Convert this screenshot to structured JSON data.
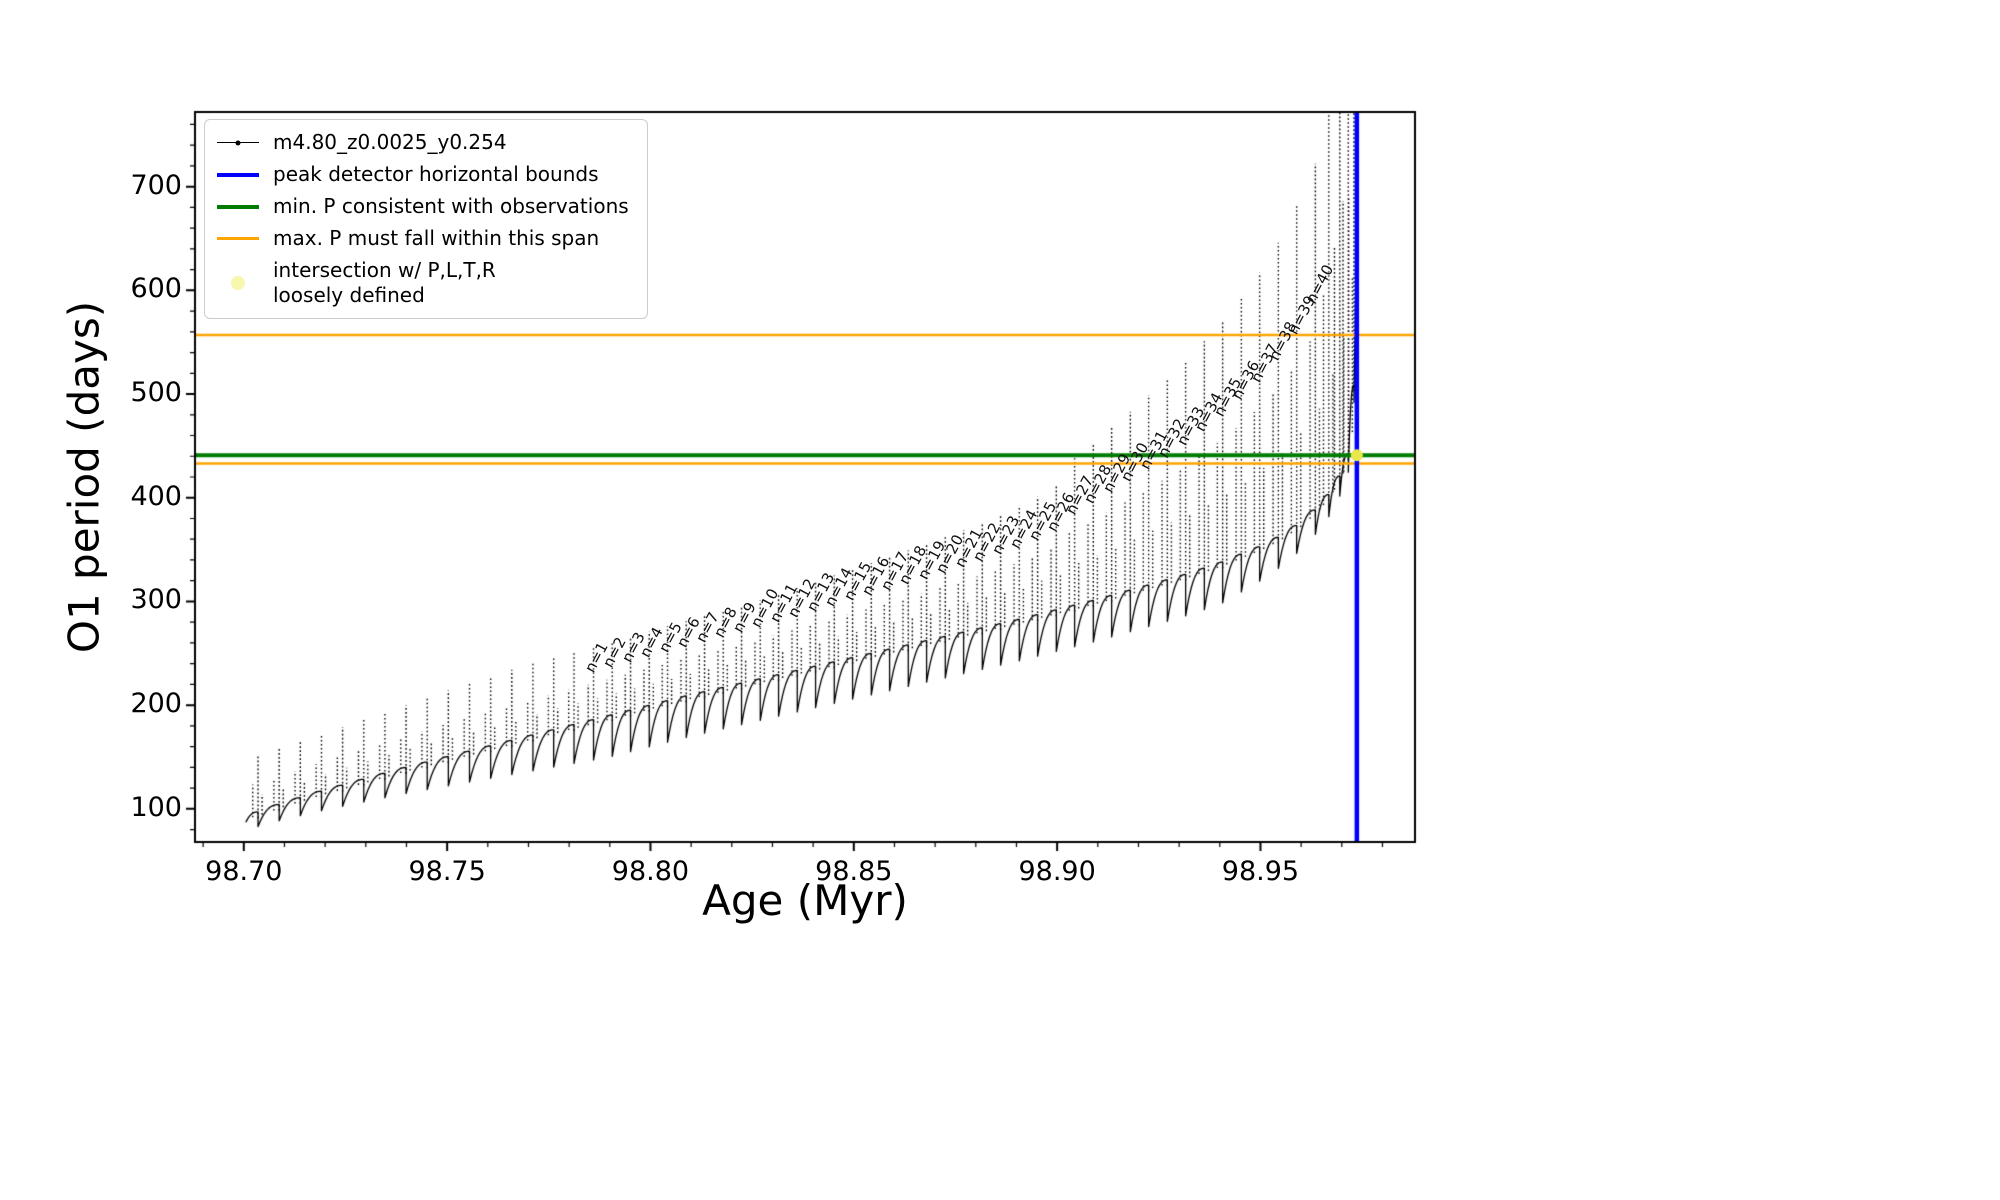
{
  "axes": {
    "xlabel": "Age (Myr)",
    "ylabel": "O1 period (days)",
    "xlim": [
      98.688,
      98.988
    ],
    "ylim": [
      68,
      772
    ],
    "xticks": [
      98.7,
      98.75,
      98.8,
      98.85,
      98.9,
      98.95
    ],
    "xtick_labels": [
      "98.70",
      "98.75",
      "98.80",
      "98.85",
      "98.90",
      "98.95"
    ],
    "yticks": [
      100,
      200,
      300,
      400,
      500,
      600,
      700
    ],
    "ytick_labels": [
      "100",
      "200",
      "300",
      "400",
      "500",
      "600",
      "700"
    ],
    "x_minor_step": 0.01,
    "y_minor_step": 20
  },
  "legend": {
    "entries": [
      {
        "label": "m4.80_z0.0025_y0.254",
        "type": "line-marker",
        "color": "#000000",
        "lw": 1.5
      },
      {
        "label": "peak detector horizontal bounds",
        "type": "line",
        "color": "#0000ff",
        "lw": 4
      },
      {
        "label": "min. P consistent with observations",
        "type": "line",
        "color": "#007d00",
        "lw": 4
      },
      {
        "label": "max. P must fall within this span",
        "type": "line",
        "color": "#ffa500",
        "lw": 2.5
      },
      {
        "label": "intersection w/ P,L,T,R\nloosely defined",
        "type": "marker",
        "color": "#f7f7ae",
        "lw": 0
      }
    ]
  },
  "chart_data": {
    "type": "line",
    "series_name": "m4.80_z0.0025_y0.254",
    "title": "",
    "xlabel": "Age (Myr)",
    "ylabel": "O1 period (days)",
    "xlim": [
      98.688,
      98.988
    ],
    "ylim": [
      68,
      772
    ],
    "grid": false,
    "legend_position": "upper left",
    "baseline_keypoints": [
      [
        98.7,
        94
      ],
      [
        98.7035,
        97
      ],
      [
        98.71,
        106
      ],
      [
        98.72,
        118
      ],
      [
        98.73,
        129
      ],
      [
        98.74,
        140
      ],
      [
        98.75,
        150
      ],
      [
        98.76,
        160
      ],
      [
        98.77,
        170
      ],
      [
        98.78,
        180
      ],
      [
        98.79,
        190
      ],
      [
        98.8,
        200
      ],
      [
        98.81,
        210
      ],
      [
        98.82,
        219
      ],
      [
        98.83,
        228
      ],
      [
        98.84,
        237
      ],
      [
        98.85,
        246
      ],
      [
        98.86,
        255
      ],
      [
        98.87,
        264
      ],
      [
        98.88,
        273
      ],
      [
        98.89,
        282
      ],
      [
        98.9,
        292
      ],
      [
        98.91,
        302
      ],
      [
        98.92,
        313
      ],
      [
        98.93,
        324
      ],
      [
        98.94,
        337
      ],
      [
        98.95,
        353
      ],
      [
        98.955,
        363
      ],
      [
        98.96,
        376
      ],
      [
        98.964,
        390
      ],
      [
        98.967,
        404
      ],
      [
        98.969,
        417
      ],
      [
        98.9705,
        429
      ],
      [
        98.9715,
        441
      ],
      [
        98.9722,
        452
      ],
      [
        98.9728,
        475
      ],
      [
        98.9733,
        560
      ],
      [
        98.9737,
        700
      ],
      [
        98.974,
        800
      ]
    ],
    "pulses": [
      {
        "age": 98.7035,
        "tip": 152
      },
      {
        "age": 98.7087,
        "tip": 158
      },
      {
        "age": 98.7139,
        "tip": 165
      },
      {
        "age": 98.7191,
        "tip": 172
      },
      {
        "age": 98.7243,
        "tip": 179
      },
      {
        "age": 98.7295,
        "tip": 186
      },
      {
        "age": 98.7347,
        "tip": 193
      },
      {
        "age": 98.7399,
        "tip": 200
      },
      {
        "age": 98.7451,
        "tip": 207
      },
      {
        "age": 98.7503,
        "tip": 214
      },
      {
        "age": 98.7555,
        "tip": 221
      },
      {
        "age": 98.7607,
        "tip": 228
      },
      {
        "age": 98.7659,
        "tip": 234
      },
      {
        "age": 98.7711,
        "tip": 240
      },
      {
        "age": 98.7762,
        "tip": 246
      },
      {
        "age": 98.7812,
        "tip": 251
      },
      {
        "age": 98.786,
        "tip": 256,
        "label": "n=1"
      },
      {
        "age": 98.7906,
        "tip": 261,
        "label": "n=2"
      },
      {
        "age": 98.7951,
        "tip": 266,
        "label": "n=3"
      },
      {
        "age": 98.7997,
        "tip": 271,
        "label": "n=4"
      },
      {
        "age": 98.8042,
        "tip": 276,
        "label": "n=5"
      },
      {
        "age": 98.8088,
        "tip": 281,
        "label": "n=6"
      },
      {
        "age": 98.8133,
        "tip": 286,
        "label": "n=7"
      },
      {
        "age": 98.8179,
        "tip": 291,
        "label": "n=8"
      },
      {
        "age": 98.8224,
        "tip": 296,
        "label": "n=9"
      },
      {
        "age": 98.827,
        "tip": 301,
        "label": "n=10"
      },
      {
        "age": 98.8315,
        "tip": 307,
        "label": "n=11"
      },
      {
        "age": 98.8361,
        "tip": 313,
        "label": "n=12"
      },
      {
        "age": 98.8406,
        "tip": 319,
        "label": "n=13"
      },
      {
        "age": 98.8452,
        "tip": 325,
        "label": "n=14"
      },
      {
        "age": 98.8497,
        "tip": 331,
        "label": "n=15"
      },
      {
        "age": 98.8543,
        "tip": 337,
        "label": "n=16"
      },
      {
        "age": 98.8588,
        "tip": 343,
        "label": "n=17"
      },
      {
        "age": 98.8634,
        "tip": 349,
        "label": "n=18"
      },
      {
        "age": 98.8679,
        "tip": 355,
        "label": "n=19"
      },
      {
        "age": 98.8725,
        "tip": 362,
        "label": "n=20"
      },
      {
        "age": 98.877,
        "tip": 369,
        "label": "n=21"
      },
      {
        "age": 98.8816,
        "tip": 376,
        "label": "n=22"
      },
      {
        "age": 98.8861,
        "tip": 384,
        "label": "n=23"
      },
      {
        "age": 98.8907,
        "tip": 392,
        "label": "n=24"
      },
      {
        "age": 98.8952,
        "tip": 401,
        "label": "n=25"
      },
      {
        "age": 98.8998,
        "tip": 413,
        "label": "n=26"
      },
      {
        "age": 98.9043,
        "tip": 438,
        "label": "n=27"
      },
      {
        "age": 98.9089,
        "tip": 453,
        "label": "n=28"
      },
      {
        "age": 98.9134,
        "tip": 468,
        "label": "n=29"
      },
      {
        "age": 98.918,
        "tip": 483,
        "label": "n=30"
      },
      {
        "age": 98.9225,
        "tip": 499,
        "label": "n=31"
      },
      {
        "age": 98.9271,
        "tip": 515,
        "label": "n=32"
      },
      {
        "age": 98.9316,
        "tip": 532,
        "label": "n=33"
      },
      {
        "age": 98.9362,
        "tip": 551,
        "label": "n=34"
      },
      {
        "age": 98.9407,
        "tip": 571,
        "label": "n=35"
      },
      {
        "age": 98.9453,
        "tip": 593,
        "label": "n=36"
      },
      {
        "age": 98.9498,
        "tip": 617,
        "label": "n=37"
      },
      {
        "age": 98.9544,
        "tip": 646,
        "label": "n=38"
      },
      {
        "age": 98.9589,
        "tip": 681,
        "label": "n=39"
      },
      {
        "age": 98.9635,
        "tip": 722,
        "label": "n=40"
      },
      {
        "age": 98.9668,
        "tip": 800
      },
      {
        "age": 98.9695,
        "tip": 880
      },
      {
        "age": 98.9716,
        "tip": 960
      },
      {
        "age": 98.973,
        "tip": 1000
      }
    ],
    "hlines": [
      {
        "name": "max-p-upper",
        "y": 557,
        "color": "#ffa500",
        "lw": 2.5
      },
      {
        "name": "max-p-lower",
        "y": 433,
        "color": "#ffa500",
        "lw": 2.5
      },
      {
        "name": "min-p",
        "y": 441,
        "color": "#007d00",
        "lw": 4
      }
    ],
    "vlines": [
      {
        "name": "peak-detector-bound",
        "x": 98.9737,
        "color": "#0000ff",
        "lw": 4.5
      }
    ],
    "intersection_point": {
      "x": 98.9737,
      "y": 441,
      "color": "#e8e84a",
      "size": 12
    }
  }
}
